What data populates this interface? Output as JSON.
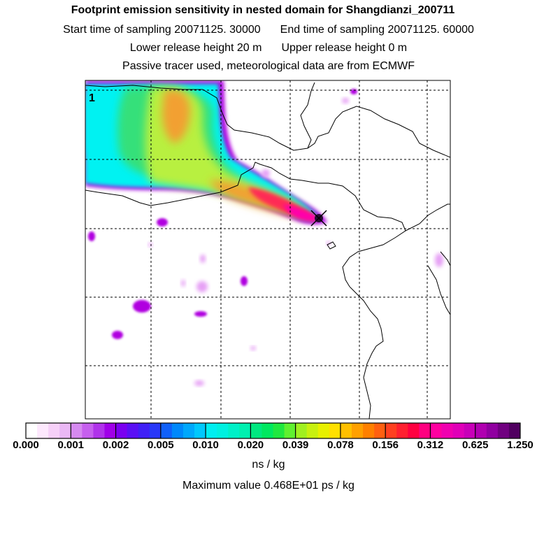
{
  "header": {
    "title": "Footprint emission sensitivity in nested domain for Shangdianzi_200711",
    "start_label": "Start time of sampling 20071125. 30000",
    "end_label": "End time of sampling 20071125. 60000",
    "lower_label": "Lower release height   20 m",
    "upper_label": "Upper release height    0 m",
    "tracer_label": "Passive tracer used, meteorological data are from ECMWF"
  },
  "map": {
    "panel_number": "1",
    "colors": {
      "cyan": "#00f2f2",
      "green": "#36e07a",
      "yellow_green": "#b8f040",
      "orange": "#f2a030",
      "red": "#ff2a55",
      "magenta": "#ff00aa",
      "purple": "#b000e0",
      "light_purple": "#e6a0f5",
      "dark": "#2a0a35"
    }
  },
  "colorbar": {
    "ticks": [
      "0.000",
      "0.001",
      "0.002",
      "0.005",
      "0.010",
      "0.020",
      "0.039",
      "0.078",
      "0.156",
      "0.312",
      "0.625",
      "1.250"
    ],
    "colors": [
      "#ffffff",
      "#fde8fd",
      "#f6d0f8",
      "#eab8f5",
      "#d68af0",
      "#c660ee",
      "#b033ea",
      "#a000e8",
      "#7a00f0",
      "#5a10f4",
      "#4020f6",
      "#2838f8",
      "#1060fa",
      "#0088fb",
      "#00a8fc",
      "#00c8fd",
      "#00eef0",
      "#00f0e0",
      "#00f0c8",
      "#00f0b0",
      "#00e880",
      "#00e860",
      "#20e840",
      "#60f030",
      "#a0f020",
      "#c8f010",
      "#e8f000",
      "#ffe000",
      "#ffc000",
      "#ffa000",
      "#ff8000",
      "#ff6010",
      "#ff4020",
      "#ff2030",
      "#ff0040",
      "#ff0080",
      "#ff00a0",
      "#f000b0",
      "#e000b8",
      "#c800b8",
      "#b000b0",
      "#9000a0",
      "#700080",
      "#500060"
    ],
    "unit": "ns / kg",
    "max_label": "Maximum value  0.468E+01 ps / kg"
  }
}
